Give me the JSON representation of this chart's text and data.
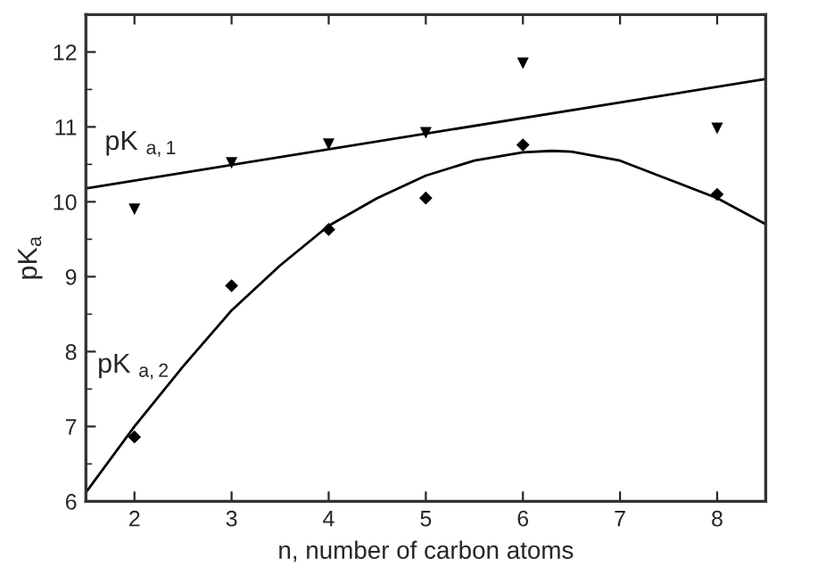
{
  "chart_data": {
    "type": "scatter",
    "xlabel": "n, number of carbon atoms",
    "ylabel": "pK$_{a}$",
    "xlim": [
      1.5,
      8.5
    ],
    "ylim": [
      6,
      12.5
    ],
    "xticks": [
      2,
      3,
      4,
      5,
      6,
      7,
      8
    ],
    "yticks": [
      6,
      7,
      8,
      9,
      10,
      11,
      12
    ],
    "grid": false,
    "legend": false,
    "series": [
      {
        "name": "pK $_{a,1}$",
        "marker": "triangle",
        "color": "#000000",
        "x": [
          2,
          3,
          4,
          5,
          6,
          8
        ],
        "values": [
          9.9,
          10.52,
          10.77,
          10.92,
          11.85,
          10.98
        ]
      },
      {
        "name": "pK $_{a,2}$",
        "marker": "diamond",
        "color": "#000000",
        "x": [
          2,
          3,
          4,
          5,
          6,
          8
        ],
        "values": [
          6.86,
          8.88,
          9.63,
          10.05,
          10.76,
          10.1
        ]
      },
      {
        "type": "line",
        "line_style": "solid",
        "color": "#000000",
        "x": [
          1.5,
          8.5
        ],
        "values": [
          10.18,
          11.64
        ]
      },
      {
        "type": "line",
        "line_style": "solid",
        "color": "#000000",
        "x": [
          1.5,
          2,
          2.5,
          3,
          3.5,
          4,
          4.5,
          5,
          5.5,
          6,
          6.3,
          6.5,
          7,
          7.5,
          8,
          8.5
        ],
        "values": [
          6.12,
          7.0,
          7.8,
          8.55,
          9.15,
          9.68,
          10.05,
          10.35,
          10.55,
          10.66,
          10.68,
          10.67,
          10.55,
          10.3,
          10.05,
          9.7
        ]
      }
    ]
  }
}
